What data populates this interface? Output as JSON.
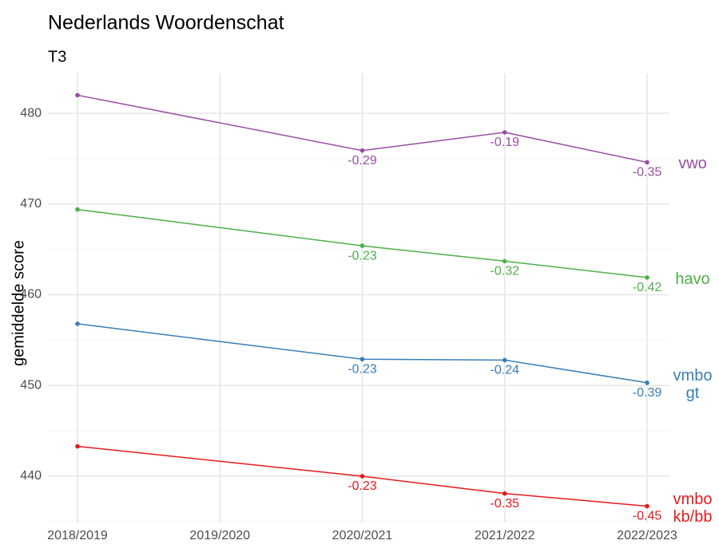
{
  "chart_data": {
    "type": "line",
    "title": "Nederlands Woordenschat",
    "subtitle": "T3",
    "y_label": "gemiddelde score",
    "categories": [
      "2018/2019",
      "2019/2020",
      "2020/2021",
      "2021/2022",
      "2022/2023"
    ],
    "ylim": [
      434.9,
      484.4
    ],
    "yticks": [
      440,
      450,
      460,
      470,
      480
    ],
    "minor_yticks": [
      435,
      445,
      455,
      465,
      475
    ],
    "grid": true,
    "series": [
      {
        "name": "vwo",
        "color": "#984ea3",
        "values": [
          482.0,
          null,
          475.9,
          477.9,
          474.6
        ],
        "value_labels": [
          null,
          null,
          "-0.29",
          "-0.19",
          "-0.35"
        ]
      },
      {
        "name": "havo",
        "color": "#4daf4a",
        "values": [
          469.4,
          null,
          465.4,
          463.7,
          461.9
        ],
        "value_labels": [
          null,
          null,
          "-0.23",
          "-0.32",
          "-0.42"
        ]
      },
      {
        "name": "vmbo gt",
        "color": "#377eb8",
        "values": [
          456.8,
          null,
          452.9,
          452.8,
          450.3
        ],
        "value_labels": [
          null,
          null,
          "-0.23",
          "-0.24",
          "-0.39"
        ]
      },
      {
        "name": "vmbo kb/bb",
        "color": "#e41a1c",
        "values": [
          443.3,
          null,
          440.0,
          438.1,
          436.7
        ],
        "value_labels": [
          null,
          null,
          "-0.23",
          "-0.35",
          "-0.45"
        ]
      }
    ]
  }
}
